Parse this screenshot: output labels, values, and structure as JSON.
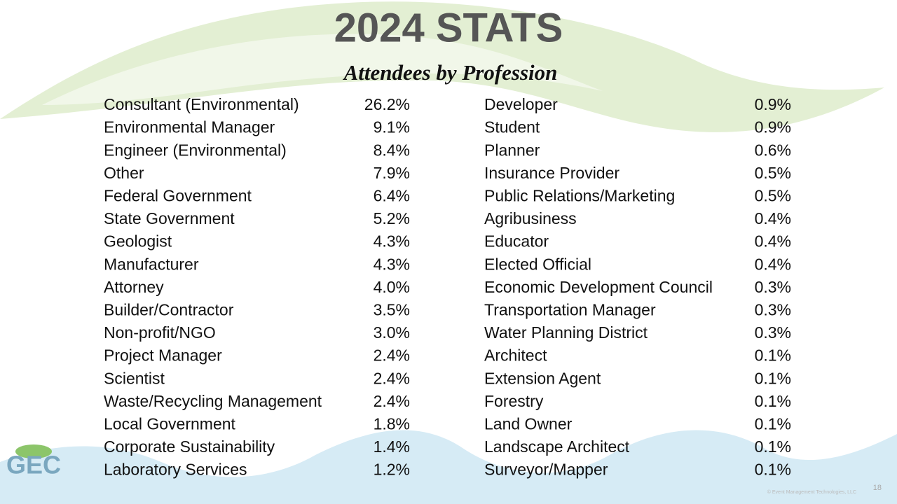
{
  "header": {
    "title": "2024 STATS",
    "subtitle": "Attendees by Profession"
  },
  "table": {
    "left": [
      [
        "Consultant (Environmental)",
        "26.2%"
      ],
      [
        "Environmental Manager",
        "9.1%"
      ],
      [
        "Engineer (Environmental)",
        "8.4%"
      ],
      [
        "Other",
        "7.9%"
      ],
      [
        "Federal Government",
        "6.4%"
      ],
      [
        "State Government",
        "5.2%"
      ],
      [
        "Geologist",
        "4.3%"
      ],
      [
        "Manufacturer",
        "4.3%"
      ],
      [
        "Attorney",
        "4.0%"
      ],
      [
        "Builder/Contractor",
        "3.5%"
      ],
      [
        "Non-profit/NGO",
        "3.0%"
      ],
      [
        "Project Manager",
        "2.4%"
      ],
      [
        "Scientist",
        "2.4%"
      ],
      [
        "Waste/Recycling Management",
        "2.4%"
      ],
      [
        "Local Government",
        "1.8%"
      ],
      [
        "Corporate Sustainability",
        "1.4%"
      ],
      [
        "Laboratory Services",
        "1.2%"
      ]
    ],
    "right": [
      [
        "Developer",
        "0.9%"
      ],
      [
        "Student",
        "0.9%"
      ],
      [
        "Planner",
        "0.6%"
      ],
      [
        "Insurance Provider",
        "0.5%"
      ],
      [
        "Public Relations/Marketing",
        "0.5%"
      ],
      [
        "Agribusiness",
        "0.4%"
      ],
      [
        "Educator",
        "0.4%"
      ],
      [
        "Elected Official",
        "0.4%"
      ],
      [
        "Economic Development Council",
        "0.3%"
      ],
      [
        "Transportation Manager",
        "0.3%"
      ],
      [
        "Water Planning District",
        "0.3%"
      ],
      [
        "Architect",
        "0.1%"
      ],
      [
        "Extension Agent",
        "0.1%"
      ],
      [
        "Forestry",
        "0.1%"
      ],
      [
        "Land Owner",
        "0.1%"
      ],
      [
        "Landscape Architect",
        "0.1%"
      ],
      [
        "Surveyor/Mapper",
        "0.1%"
      ]
    ]
  },
  "footer": {
    "logo": "GEC",
    "copyright": "© Event Management Technologies, LLC",
    "page": "18"
  }
}
